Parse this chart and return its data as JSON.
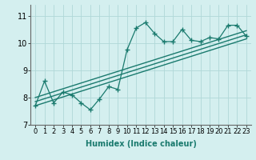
{
  "xlabel": "Humidex (Indice chaleur)",
  "xlim": [
    -0.5,
    23.5
  ],
  "ylim": [
    7,
    11.4
  ],
  "yticks": [
    7,
    8,
    9,
    10,
    11
  ],
  "xticks": [
    0,
    1,
    2,
    3,
    4,
    5,
    6,
    7,
    8,
    9,
    10,
    11,
    12,
    13,
    14,
    15,
    16,
    17,
    18,
    19,
    20,
    21,
    22,
    23
  ],
  "bg_color": "#d4efef",
  "grid_color": "#b0d8d8",
  "line_color": "#1a7a6e",
  "data_line": {
    "x": [
      0,
      1,
      2,
      3,
      4,
      5,
      6,
      7,
      8,
      9,
      10,
      11,
      12,
      13,
      14,
      15,
      16,
      17,
      18,
      19,
      20,
      21,
      22,
      23
    ],
    "y": [
      7.7,
      8.6,
      7.8,
      8.2,
      8.1,
      7.8,
      7.55,
      7.95,
      8.4,
      8.3,
      9.75,
      10.55,
      10.75,
      10.35,
      10.05,
      10.05,
      10.5,
      10.1,
      10.05,
      10.2,
      10.15,
      10.65,
      10.65,
      10.25
    ]
  },
  "straight_lines": [
    {
      "x": [
        0,
        23
      ],
      "y": [
        7.7,
        10.15
      ]
    },
    {
      "x": [
        0,
        23
      ],
      "y": [
        7.85,
        10.3
      ]
    },
    {
      "x": [
        0,
        23
      ],
      "y": [
        8.0,
        10.45
      ]
    }
  ],
  "tick_fontsize": 6,
  "xlabel_fontsize": 7
}
